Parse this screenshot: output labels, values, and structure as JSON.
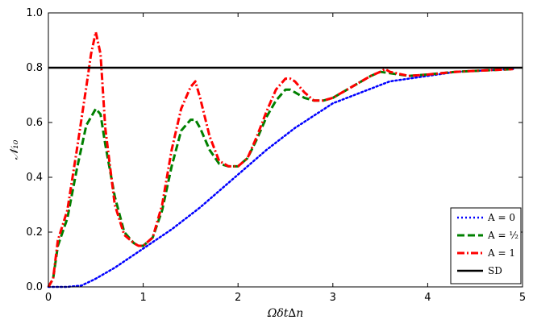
{
  "chart_data": {
    "type": "line",
    "title": "",
    "xlabel": "Ωδt∆n",
    "ylabel": "𝒩₁₀",
    "xlim": [
      0,
      5
    ],
    "ylim": [
      0,
      1.0
    ],
    "xticks": [
      0,
      1,
      2,
      3,
      4,
      5
    ],
    "xtick_labels": [
      "0",
      "1",
      "2",
      "3",
      "4",
      "5"
    ],
    "yticks": [
      0.0,
      0.2,
      0.4,
      0.6,
      0.8,
      1.0
    ],
    "ytick_labels": [
      "0.0",
      "0.2",
      "0.4",
      "0.6",
      "0.8",
      "1.0"
    ],
    "grid": false,
    "legend_position": "bottom-right",
    "series": [
      {
        "name": "A = 0",
        "color": "#0000ff",
        "style": "dotted",
        "x": [
          0,
          0.2,
          0.35,
          0.5,
          0.7,
          1.0,
          1.3,
          1.6,
          2.0,
          2.3,
          2.6,
          3.0,
          3.3,
          3.6,
          4.0,
          4.3,
          4.6,
          4.9
        ],
        "y": [
          0,
          0,
          0.005,
          0.03,
          0.07,
          0.14,
          0.21,
          0.29,
          0.41,
          0.5,
          0.58,
          0.67,
          0.71,
          0.75,
          0.77,
          0.785,
          0.79,
          0.795
        ]
      },
      {
        "name": "A = ½",
        "color": "#008000",
        "style": "dashed",
        "x": [
          0,
          0.05,
          0.1,
          0.2,
          0.3,
          0.4,
          0.5,
          0.55,
          0.6,
          0.7,
          0.8,
          0.9,
          0.95,
          1.0,
          1.1,
          1.2,
          1.3,
          1.4,
          1.5,
          1.55,
          1.6,
          1.7,
          1.8,
          1.9,
          2.0,
          2.1,
          2.2,
          2.3,
          2.4,
          2.5,
          2.55,
          2.6,
          2.7,
          2.8,
          2.9,
          3.0,
          3.2,
          3.4,
          3.5,
          3.6,
          3.8,
          4.0,
          4.3,
          4.6,
          4.9
        ],
        "y": [
          0,
          0.03,
          0.15,
          0.25,
          0.43,
          0.59,
          0.65,
          0.63,
          0.52,
          0.33,
          0.2,
          0.16,
          0.15,
          0.15,
          0.18,
          0.28,
          0.44,
          0.57,
          0.61,
          0.61,
          0.58,
          0.5,
          0.45,
          0.44,
          0.44,
          0.47,
          0.54,
          0.62,
          0.68,
          0.72,
          0.72,
          0.71,
          0.69,
          0.68,
          0.68,
          0.69,
          0.73,
          0.77,
          0.785,
          0.78,
          0.77,
          0.775,
          0.785,
          0.79,
          0.795
        ]
      },
      {
        "name": "A = 1",
        "color": "#ff0000",
        "style": "dashdot",
        "x": [
          0,
          0.05,
          0.1,
          0.2,
          0.3,
          0.4,
          0.45,
          0.5,
          0.55,
          0.6,
          0.7,
          0.8,
          0.9,
          0.95,
          1.0,
          1.1,
          1.2,
          1.3,
          1.4,
          1.5,
          1.55,
          1.6,
          1.7,
          1.8,
          1.9,
          2.0,
          2.1,
          2.2,
          2.3,
          2.4,
          2.5,
          2.55,
          2.6,
          2.7,
          2.8,
          2.9,
          3.0,
          3.2,
          3.4,
          3.5,
          3.55,
          3.6,
          3.8,
          4.0,
          4.3,
          4.6,
          4.9
        ],
        "y": [
          0,
          0.03,
          0.17,
          0.28,
          0.5,
          0.73,
          0.85,
          0.93,
          0.85,
          0.58,
          0.3,
          0.19,
          0.16,
          0.15,
          0.15,
          0.18,
          0.3,
          0.5,
          0.65,
          0.73,
          0.75,
          0.69,
          0.55,
          0.46,
          0.44,
          0.44,
          0.47,
          0.55,
          0.64,
          0.72,
          0.76,
          0.76,
          0.75,
          0.71,
          0.68,
          0.68,
          0.69,
          0.73,
          0.77,
          0.785,
          0.795,
          0.785,
          0.77,
          0.775,
          0.785,
          0.79,
          0.795
        ]
      },
      {
        "name": "SD",
        "color": "#000000",
        "style": "solid",
        "x": [
          0,
          5
        ],
        "y": [
          0.8,
          0.8
        ]
      }
    ]
  }
}
